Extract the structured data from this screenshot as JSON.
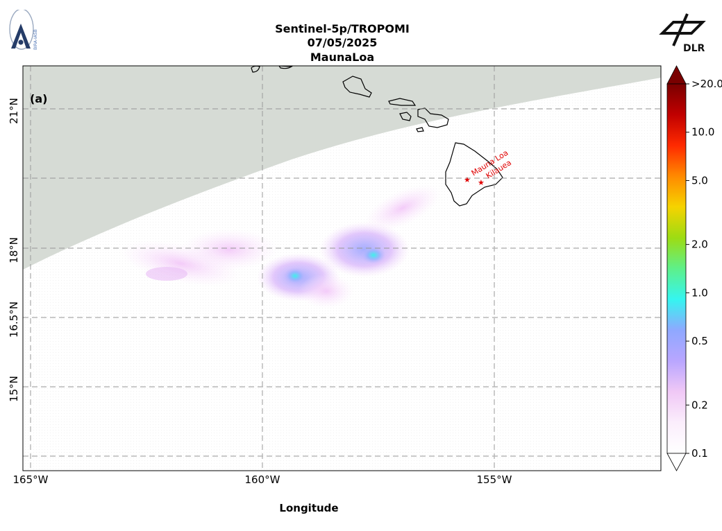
{
  "header": {
    "title_line1": "Sentinel-5p/TROPOMI",
    "title_line2": "07/05/2025",
    "title_line3": "MaunaLoa"
  },
  "logos": {
    "left": {
      "icon": "bira-iasb-logo",
      "text": "BIRA-IASB"
    },
    "right": {
      "icon": "dlr-logo",
      "text": "DLR"
    }
  },
  "map": {
    "panel_label": "(a)",
    "xlabel": "Longitude",
    "lon_ticks": [
      "165°W",
      "160°W",
      "155°W"
    ],
    "lat_ticks": [
      "21°N",
      "18°N",
      "16.5°N",
      "15°N"
    ],
    "volcanoes": [
      {
        "name": "Mauna Loa",
        "lon": -155.6,
        "lat": 19.47
      },
      {
        "name": "Kilauea",
        "lon": -155.29,
        "lat": 19.41
      }
    ],
    "colors": {
      "no_data": "#d6dbd5",
      "grid": "#9a9a9a",
      "coast": "#000000",
      "volcano": "#e00000"
    }
  },
  "colorbar": {
    "scale": "log",
    "tick_labels": [
      "0.1",
      "0.2",
      "0.5",
      "1.0",
      "2.0",
      "5.0",
      "10.0",
      ">20.0"
    ],
    "tick_values": [
      0.1,
      0.2,
      0.5,
      1.0,
      2.0,
      5.0,
      10.0,
      20.0
    ],
    "extend": "both",
    "gradient_stops": [
      "#ffffff",
      "#fbeefc",
      "#f0c8f6",
      "#b9a6ff",
      "#8fa8ff",
      "#35f5f0",
      "#5ef08a",
      "#9ddc13",
      "#f6d300",
      "#ff8a00",
      "#ff2a00",
      "#c00000",
      "#7a0000"
    ]
  }
}
